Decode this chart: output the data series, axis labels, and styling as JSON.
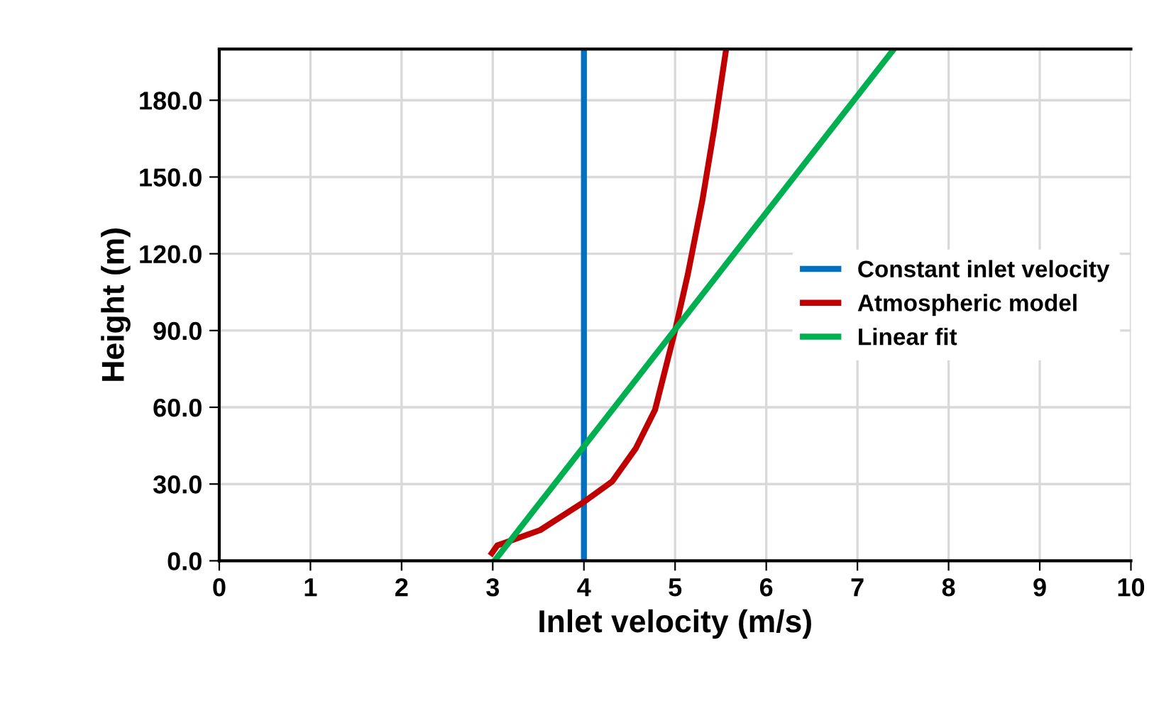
{
  "chart_data": {
    "type": "line",
    "xlabel": "Inlet velocity (m/s)",
    "ylabel": "Height (m)",
    "xlim": [
      0,
      10
    ],
    "ylim": [
      0,
      200
    ],
    "xticks": [
      0,
      1,
      2,
      3,
      4,
      5,
      6,
      7,
      8,
      9,
      10
    ],
    "yticks": [
      {
        "value": 0,
        "label": "0.0"
      },
      {
        "value": 30,
        "label": "30.0"
      },
      {
        "value": 60,
        "label": "60.0"
      },
      {
        "value": 90,
        "label": "90.0"
      },
      {
        "value": 120,
        "label": "120.0"
      },
      {
        "value": 150,
        "label": "150.0"
      },
      {
        "value": 180,
        "label": "180.0"
      }
    ],
    "grid": true,
    "legend": "center right",
    "marker": "none",
    "line_style": "solid",
    "series": [
      {
        "name": "Constant inlet velocity",
        "color": "#0070c0",
        "x": [
          4,
          4
        ],
        "values": [
          0,
          200
        ]
      },
      {
        "name": "Atmospheric model",
        "color": "#c00000",
        "x": [
          2.99,
          3.05,
          3.52,
          4.0,
          4.31,
          4.57,
          4.78,
          5.0,
          5.14,
          5.3,
          5.43,
          5.51,
          5.56
        ],
        "values": [
          3,
          6,
          12,
          23,
          31,
          44,
          59,
          90,
          112,
          141,
          169,
          188,
          200
        ]
      },
      {
        "name": "Linear fit",
        "color": "#00b050",
        "x": [
          3.02,
          7.4
        ],
        "values": [
          0,
          200
        ]
      }
    ]
  }
}
